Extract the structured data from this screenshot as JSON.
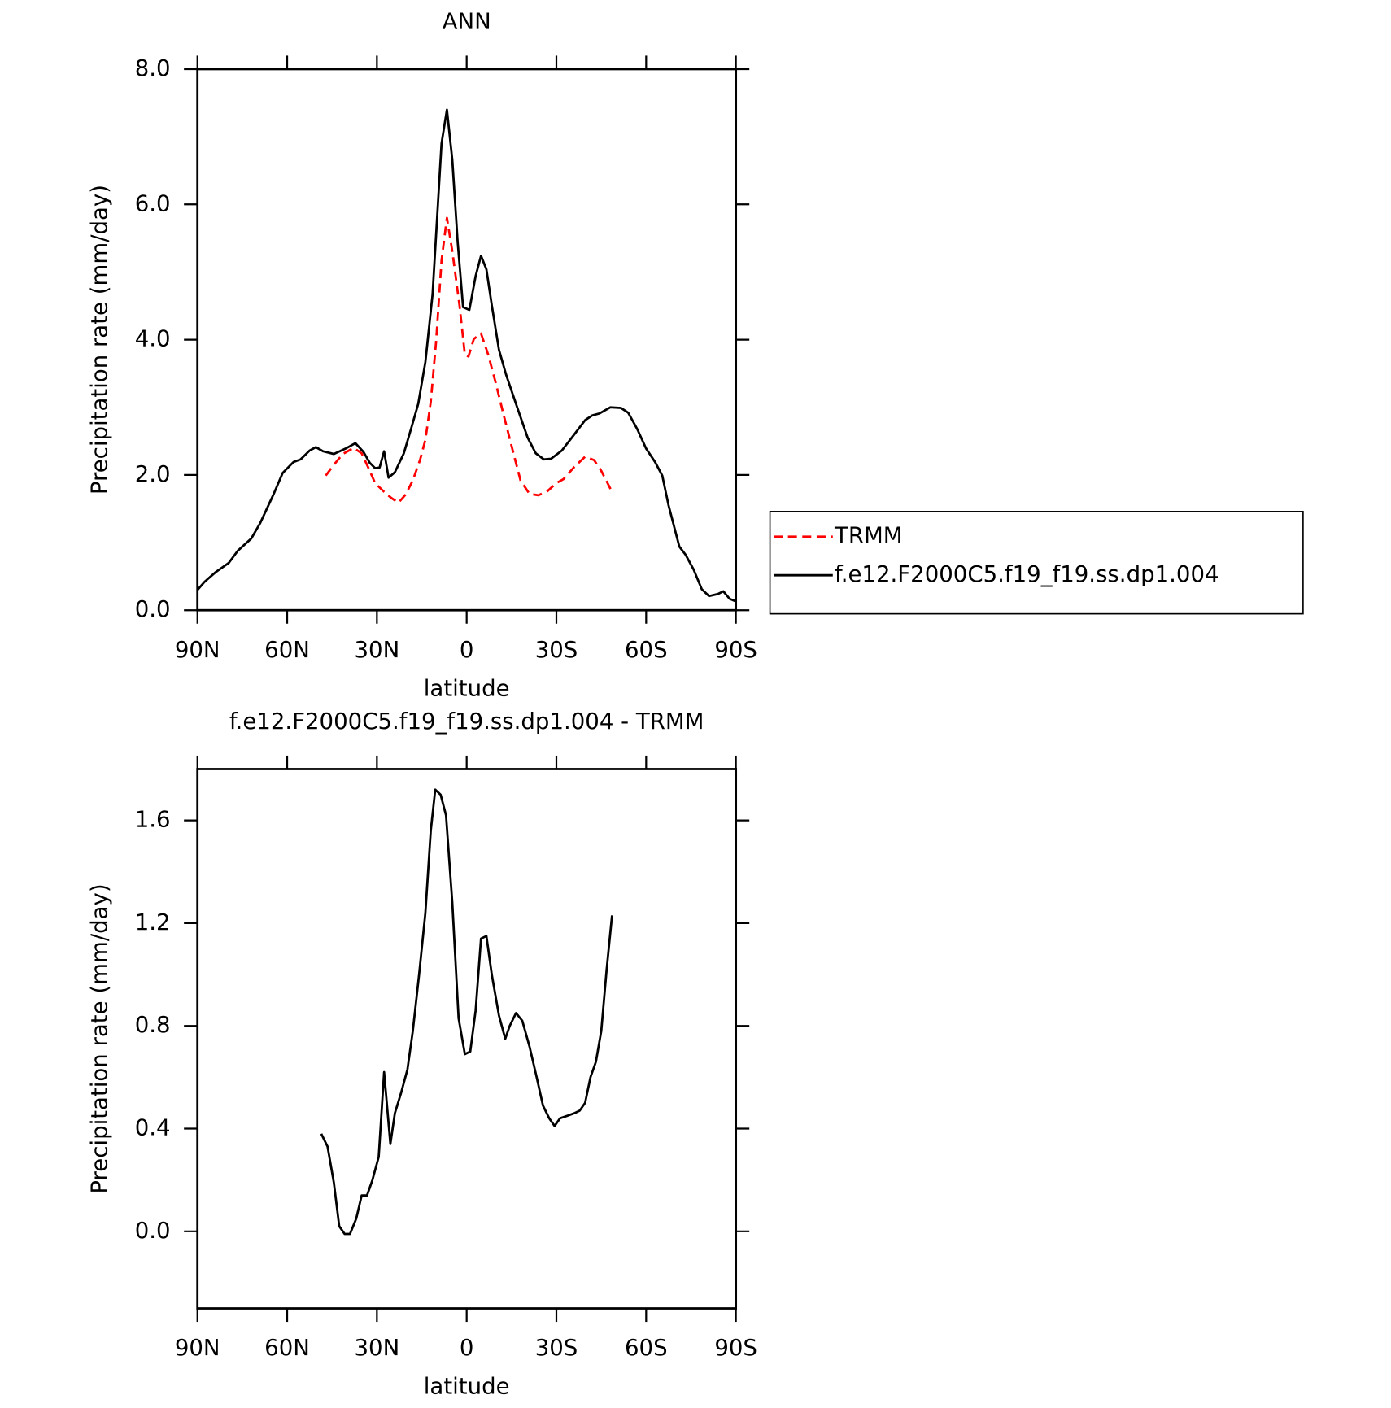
{
  "chart_data": [
    {
      "type": "line",
      "title": "ANN",
      "x_label": "latitude",
      "y_label": "Precipitation rate (mm/day)",
      "xlim": [
        90,
        -90
      ],
      "xticks": [
        {
          "value": 90,
          "label": "90N"
        },
        {
          "value": 60,
          "label": "60N"
        },
        {
          "value": 30,
          "label": "30N"
        },
        0,
        {
          "value": -30,
          "label": "30S"
        },
        {
          "value": -60,
          "label": "60S"
        },
        {
          "value": -90,
          "label": "90S"
        }
      ],
      "ylim": [
        0,
        8
      ],
      "yticks": [
        {
          "value": 0,
          "label": "0.0"
        },
        {
          "value": 2,
          "label": "2.0"
        },
        {
          "value": 4,
          "label": "4.0"
        },
        {
          "value": 6,
          "label": "6.0"
        },
        {
          "value": 8,
          "label": "8.0"
        }
      ],
      "legend": "right",
      "series": [
        {
          "name": "TRMM",
          "color": "#ff0000",
          "dash": true,
          "x": [
            47.1,
            44.4,
            41.4,
            37.8,
            35.1,
            33,
            30.6,
            27.6,
            25.2,
            22.8,
            20.4,
            18,
            15.6,
            13.8,
            12,
            10.2,
            8.4,
            6.6,
            4.8,
            2.4,
            0.6,
            -0.6,
            -2.4,
            -4.8,
            -7.2,
            -9.6,
            -12,
            -15,
            -18,
            -21,
            -24,
            -27,
            -30,
            -32.4,
            -36,
            -39.6,
            -42.6,
            -45,
            -48.6
          ],
          "values": [
            1.99,
            2.15,
            2.31,
            2.4,
            2.32,
            2.12,
            1.88,
            1.75,
            1.66,
            1.59,
            1.71,
            1.92,
            2.22,
            2.52,
            3.08,
            3.98,
            5.17,
            5.8,
            5.31,
            4.51,
            3.78,
            3.75,
            4.01,
            4.09,
            3.78,
            3.38,
            2.95,
            2.43,
            1.92,
            1.72,
            1.7,
            1.76,
            1.88,
            1.94,
            2.12,
            2.27,
            2.22,
            2.06,
            1.75
          ]
        },
        {
          "name": "f.e12.F2000C5.f19_f19.ss.dp1.004",
          "color": "#000000",
          "dash": false,
          "x": [
            90,
            87.6,
            84,
            79.5,
            76.5,
            72,
            69,
            64.5,
            61.5,
            57.9,
            55.5,
            52.5,
            50.4,
            48,
            44.4,
            40.5,
            37.2,
            34.5,
            32.4,
            30.6,
            29.1,
            27.6,
            26.1,
            24,
            21,
            18.6,
            16.2,
            13.8,
            11.4,
            8.4,
            6.6,
            4.8,
            3,
            1.2,
            -0.9,
            -3,
            -4.8,
            -6.6,
            -8.4,
            -10.8,
            -13.2,
            -16.5,
            -20.4,
            -23.1,
            -25.8,
            -28.2,
            -31.8,
            -36,
            -39.6,
            -42,
            -44.4,
            -48,
            -51.6,
            -54,
            -57,
            -60,
            -63,
            -65.4,
            -67.5,
            -71.1,
            -73.2,
            -75.9,
            -78.6,
            -81,
            -84,
            -85.8,
            -87.9,
            -90
          ],
          "values": [
            0.3,
            0.42,
            0.56,
            0.7,
            0.88,
            1.06,
            1.29,
            1.72,
            2.03,
            2.19,
            2.23,
            2.36,
            2.41,
            2.35,
            2.31,
            2.39,
            2.47,
            2.34,
            2.18,
            2.1,
            2.11,
            2.35,
            1.96,
            2.04,
            2.32,
            2.68,
            3.05,
            3.67,
            4.67,
            6.9,
            7.4,
            6.66,
            5.44,
            4.48,
            4.44,
            4.94,
            5.24,
            5.04,
            4.51,
            3.85,
            3.48,
            3.05,
            2.55,
            2.32,
            2.23,
            2.24,
            2.36,
            2.6,
            2.81,
            2.88,
            2.91,
            3.0,
            2.99,
            2.92,
            2.68,
            2.39,
            2.19,
            1.99,
            1.55,
            0.94,
            0.82,
            0.6,
            0.31,
            0.21,
            0.24,
            0.28,
            0.17,
            0.13
          ]
        }
      ]
    },
    {
      "type": "line",
      "title": "f.e12.F2000C5.f19_f19.ss.dp1.004 - TRMM",
      "x_label": "latitude",
      "y_label": "Precipitation rate (mm/day)",
      "xlim": [
        90,
        -90
      ],
      "xticks": [
        {
          "value": 90,
          "label": "90N"
        },
        {
          "value": 60,
          "label": "60N"
        },
        {
          "value": 30,
          "label": "30N"
        },
        0,
        {
          "value": -30,
          "label": "30S"
        },
        {
          "value": -60,
          "label": "60S"
        },
        {
          "value": -90,
          "label": "90S"
        }
      ],
      "ylim": [
        -0.3,
        1.8
      ],
      "yticks": [
        {
          "value": 0,
          "label": "0.0"
        },
        0.4,
        0.8,
        1.2,
        1.6
      ],
      "series": [
        {
          "color": "#000000",
          "dash": false,
          "x": [
            48.6,
            46.5,
            44.4,
            42.6,
            40.8,
            39,
            36.9,
            35.1,
            33.3,
            31.5,
            29.4,
            27.6,
            25.5,
            24,
            21.9,
            19.8,
            18,
            15.9,
            13.8,
            12,
            10.5,
            8.7,
            6.9,
            4.8,
            2.7,
            0.6,
            -1.2,
            -3,
            -4.8,
            -6.6,
            -8.4,
            -10.8,
            -12.9,
            -14.4,
            -16.5,
            -18.6,
            -21,
            -23.4,
            -25.5,
            -27.6,
            -29.4,
            -31.2,
            -33.6,
            -36,
            -37.8,
            -39.6,
            -41.4,
            -43.2,
            -45,
            -46.8,
            -48.6
          ],
          "values": [
            0.38,
            0.33,
            0.19,
            0.02,
            -0.01,
            -0.01,
            0.05,
            0.14,
            0.14,
            0.2,
            0.29,
            0.62,
            0.34,
            0.46,
            0.54,
            0.63,
            0.78,
            1.0,
            1.24,
            1.56,
            1.72,
            1.7,
            1.62,
            1.28,
            0.83,
            0.69,
            0.7,
            0.86,
            1.14,
            1.15,
            1.0,
            0.84,
            0.75,
            0.8,
            0.85,
            0.82,
            0.72,
            0.6,
            0.49,
            0.44,
            0.41,
            0.44,
            0.45,
            0.46,
            0.47,
            0.5,
            0.6,
            0.66,
            0.78,
            1.02,
            1.23
          ]
        }
      ]
    }
  ]
}
